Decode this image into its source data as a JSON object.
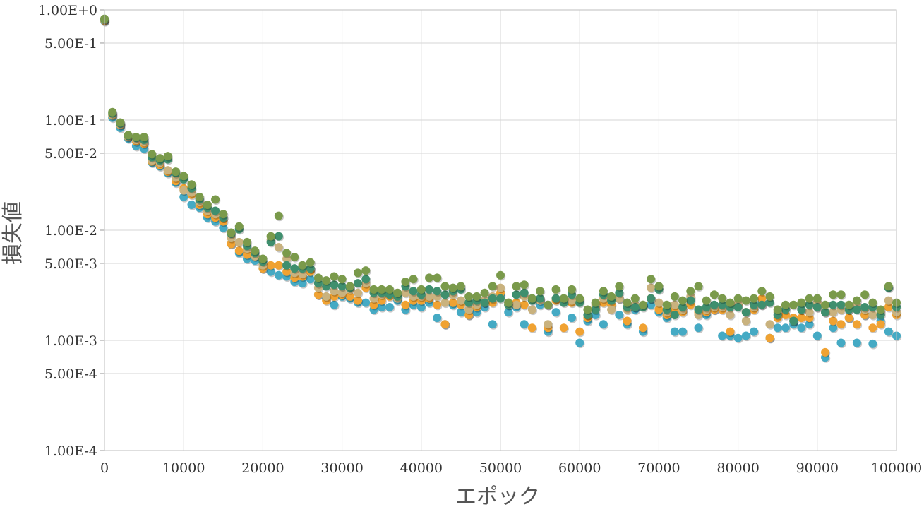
{
  "chart_data": {
    "type": "scatter",
    "title": "",
    "xlabel": "エポック",
    "ylabel": "損失値",
    "x_scale": "linear",
    "y_scale": "log",
    "xlim": [
      0,
      100000
    ],
    "ylim": [
      0.0001,
      1
    ],
    "grid": true,
    "legend": "none",
    "x_ticks": [
      0,
      10000,
      20000,
      30000,
      40000,
      50000,
      60000,
      70000,
      80000,
      90000,
      100000
    ],
    "x_tick_labels": [
      "0",
      "10000",
      "20000",
      "30000",
      "40000",
      "50000",
      "60000",
      "70000",
      "80000",
      "90000",
      "100000"
    ],
    "y_ticks": [
      1,
      0.5,
      0.1,
      0.05,
      0.01,
      0.005,
      0.001,
      0.0005,
      0.0001
    ],
    "y_tick_labels": [
      "1.00E+0",
      "5.00E-1",
      "1.00E-1",
      "5.00E-2",
      "1.00E-2",
      "5.00E-3",
      "1.00E-3",
      "5.00E-4",
      "1.00E-4"
    ],
    "series": [
      {
        "color": "#45aac4",
        "x": [
          0,
          1000,
          2000,
          3000,
          4000,
          5000,
          6000,
          7000,
          8000,
          9000,
          10000,
          11000,
          12000,
          13000,
          14000,
          15000,
          16000,
          17000,
          18000,
          19000,
          20000,
          21000,
          22000,
          23000,
          24000,
          25000,
          26000,
          27000,
          28000,
          29000,
          30000,
          31000,
          32000,
          33000,
          34000,
          35000,
          36000,
          37000,
          38000,
          39000,
          40000,
          41000,
          42000,
          43000,
          44000,
          45000,
          46000,
          47000,
          48000,
          49000,
          50000,
          51000,
          52000,
          53000,
          54000,
          55000,
          56000,
          57000,
          58000,
          59000,
          60000,
          61000,
          62000,
          63000,
          64000,
          65000,
          66000,
          67000,
          68000,
          69000,
          70000,
          71000,
          72000,
          73000,
          74000,
          75000,
          76000,
          77000,
          78000,
          79000,
          80000,
          81000,
          82000,
          83000,
          84000,
          85000,
          86000,
          87000,
          88000,
          89000,
          90000,
          91000,
          92000,
          93000,
          94000,
          95000,
          96000,
          97000,
          98000,
          99000,
          100000
        ],
        "y": [
          0.79,
          0.105,
          0.085,
          0.068,
          0.058,
          0.055,
          0.041,
          0.038,
          0.033,
          0.027,
          0.02,
          0.017,
          0.016,
          0.013,
          0.012,
          0.0105,
          0.0075,
          0.0062,
          0.0055,
          0.0053,
          0.0045,
          0.0042,
          0.0039,
          0.0038,
          0.0034,
          0.0033,
          0.0036,
          0.0026,
          0.0024,
          0.0021,
          0.0025,
          0.0024,
          0.0022,
          0.0022,
          0.0019,
          0.002,
          0.002,
          0.0023,
          0.0019,
          0.0021,
          0.002,
          0.0022,
          0.0016,
          0.0014,
          0.0021,
          0.0018,
          0.0017,
          0.0018,
          0.002,
          0.0014,
          0.0026,
          0.0018,
          0.002,
          0.0014,
          0.0024,
          0.0021,
          0.0012,
          0.0018,
          0.0024,
          0.0016,
          0.00095,
          0.0015,
          0.0017,
          0.0014,
          0.0021,
          0.0017,
          0.0014,
          0.0019,
          0.0012,
          0.0021,
          0.0018,
          0.0016,
          0.0012,
          0.0012,
          0.0024,
          0.0013,
          0.0017,
          0.0019,
          0.0011,
          0.0011,
          0.00105,
          0.0011,
          0.0012,
          0.0022,
          0.00105,
          0.0013,
          0.0013,
          0.0014,
          0.0013,
          0.0014,
          0.0011,
          0.0007,
          0.0013,
          0.00095,
          0.0016,
          0.00095,
          0.0017,
          0.00093,
          0.0015,
          0.0012,
          0.0011
        ]
      },
      {
        "color": "#f0a232",
        "x": [
          0,
          1000,
          2000,
          3000,
          4000,
          5000,
          6000,
          7000,
          8000,
          9000,
          10000,
          11000,
          12000,
          13000,
          14000,
          15000,
          16000,
          17000,
          18000,
          19000,
          20000,
          21000,
          22000,
          23000,
          24000,
          25000,
          26000,
          27000,
          28000,
          29000,
          30000,
          31000,
          32000,
          33000,
          34000,
          35000,
          36000,
          37000,
          38000,
          39000,
          40000,
          41000,
          42000,
          43000,
          44000,
          45000,
          46000,
          47000,
          48000,
          49000,
          50000,
          51000,
          52000,
          53000,
          54000,
          55000,
          56000,
          57000,
          58000,
          59000,
          60000,
          61000,
          62000,
          63000,
          64000,
          65000,
          66000,
          67000,
          68000,
          69000,
          70000,
          71000,
          72000,
          73000,
          74000,
          75000,
          76000,
          77000,
          78000,
          79000,
          80000,
          81000,
          82000,
          83000,
          84000,
          85000,
          86000,
          87000,
          88000,
          89000,
          90000,
          91000,
          92000,
          93000,
          94000,
          95000,
          96000,
          97000,
          98000,
          99000,
          100000
        ],
        "y": [
          0.8,
          0.11,
          0.09,
          0.07,
          0.064,
          0.061,
          0.042,
          0.039,
          0.034,
          0.028,
          0.024,
          0.021,
          0.017,
          0.014,
          0.013,
          0.012,
          0.0075,
          0.0065,
          0.006,
          0.0058,
          0.0045,
          0.0048,
          0.0048,
          0.0042,
          0.0037,
          0.0038,
          0.0042,
          0.0026,
          0.0023,
          0.0025,
          0.0026,
          0.0025,
          0.0023,
          0.003,
          0.0021,
          0.0023,
          0.0025,
          0.0025,
          0.0021,
          0.0023,
          0.0023,
          0.0024,
          0.0021,
          0.0014,
          0.0022,
          0.0021,
          0.0017,
          0.002,
          0.0022,
          0.0022,
          0.0027,
          0.0021,
          0.0022,
          0.0021,
          0.0013,
          0.0024,
          0.0013,
          0.0023,
          0.0013,
          0.0022,
          0.0012,
          0.0016,
          0.002,
          0.0022,
          0.0021,
          0.0024,
          0.0015,
          0.002,
          0.0013,
          0.0024,
          0.0019,
          0.0017,
          0.0019,
          0.0018,
          0.0021,
          0.0018,
          0.0018,
          0.0019,
          0.0019,
          0.0012,
          0.0021,
          0.0018,
          0.0019,
          0.0024,
          0.00105,
          0.0016,
          0.0017,
          0.0016,
          0.0016,
          0.0016,
          0.002,
          0.00078,
          0.0015,
          0.0014,
          0.0016,
          0.0014,
          0.0017,
          0.0013,
          0.0014,
          0.002,
          0.0017
        ]
      },
      {
        "color": "#c9b27e",
        "x": [
          0,
          1000,
          2000,
          3000,
          4000,
          5000,
          6000,
          7000,
          8000,
          9000,
          10000,
          11000,
          12000,
          13000,
          14000,
          15000,
          16000,
          17000,
          18000,
          19000,
          20000,
          21000,
          22000,
          23000,
          24000,
          25000,
          26000,
          27000,
          28000,
          29000,
          30000,
          31000,
          32000,
          33000,
          34000,
          35000,
          36000,
          37000,
          38000,
          39000,
          40000,
          41000,
          42000,
          43000,
          44000,
          45000,
          46000,
          47000,
          48000,
          49000,
          50000,
          51000,
          52000,
          53000,
          54000,
          55000,
          56000,
          57000,
          58000,
          59000,
          60000,
          61000,
          62000,
          63000,
          64000,
          65000,
          66000,
          67000,
          68000,
          69000,
          70000,
          71000,
          72000,
          73000,
          74000,
          75000,
          76000,
          77000,
          78000,
          79000,
          80000,
          81000,
          82000,
          83000,
          84000,
          85000,
          86000,
          87000,
          88000,
          89000,
          90000,
          91000,
          92000,
          93000,
          94000,
          95000,
          96000,
          97000,
          98000,
          99000,
          100000
        ],
        "y": [
          0.81,
          0.112,
          0.091,
          0.071,
          0.066,
          0.063,
          0.043,
          0.041,
          0.035,
          0.03,
          0.023,
          0.022,
          0.018,
          0.015,
          0.014,
          0.013,
          0.0085,
          0.0078,
          0.0068,
          0.0058,
          0.0048,
          0.0082,
          0.007,
          0.0055,
          0.0041,
          0.004,
          0.0045,
          0.003,
          0.0025,
          0.0028,
          0.0027,
          0.0029,
          0.0027,
          0.0033,
          0.0024,
          0.0026,
          0.0027,
          0.0024,
          0.0027,
          0.0025,
          0.0025,
          0.0025,
          0.0025,
          0.0022,
          0.0026,
          0.0023,
          0.0019,
          0.0021,
          0.0023,
          0.0025,
          0.003,
          0.0022,
          0.0021,
          0.0025,
          0.0019,
          0.0023,
          0.0014,
          0.0024,
          0.0024,
          0.0023,
          0.0023,
          0.0017,
          0.0021,
          0.0024,
          0.0019,
          0.0024,
          0.0019,
          0.0021,
          0.0021,
          0.003,
          0.0022,
          0.0018,
          0.0021,
          0.0019,
          0.0025,
          0.0017,
          0.0019,
          0.002,
          0.002,
          0.0017,
          0.0022,
          0.0015,
          0.002,
          0.0021,
          0.0014,
          0.0018,
          0.002,
          0.0015,
          0.0019,
          0.0018,
          0.0022,
          0.0018,
          0.0018,
          0.0019,
          0.0019,
          0.0021,
          0.0019,
          0.0017,
          0.0018,
          0.0023,
          0.0018
        ]
      },
      {
        "color": "#3f8f6e",
        "x": [
          0,
          1000,
          2000,
          3000,
          4000,
          5000,
          6000,
          7000,
          8000,
          9000,
          10000,
          11000,
          12000,
          13000,
          14000,
          15000,
          16000,
          17000,
          18000,
          19000,
          20000,
          21000,
          22000,
          23000,
          24000,
          25000,
          26000,
          27000,
          28000,
          29000,
          30000,
          31000,
          32000,
          33000,
          34000,
          35000,
          36000,
          37000,
          38000,
          39000,
          40000,
          41000,
          42000,
          43000,
          44000,
          45000,
          46000,
          47000,
          48000,
          49000,
          50000,
          51000,
          52000,
          53000,
          54000,
          55000,
          56000,
          57000,
          58000,
          59000,
          60000,
          61000,
          62000,
          63000,
          64000,
          65000,
          66000,
          67000,
          68000,
          69000,
          70000,
          71000,
          72000,
          73000,
          74000,
          75000,
          76000,
          77000,
          78000,
          79000,
          80000,
          81000,
          82000,
          83000,
          84000,
          85000,
          86000,
          87000,
          88000,
          89000,
          90000,
          91000,
          92000,
          93000,
          94000,
          95000,
          96000,
          97000,
          98000,
          99000,
          100000
        ],
        "y": [
          0.82,
          0.115,
          0.093,
          0.072,
          0.069,
          0.066,
          0.046,
          0.043,
          0.044,
          0.033,
          0.029,
          0.024,
          0.019,
          0.016,
          0.015,
          0.013,
          0.0093,
          0.0102,
          0.0072,
          0.0062,
          0.0052,
          0.0078,
          0.0088,
          0.0048,
          0.0045,
          0.0045,
          0.0045,
          0.0033,
          0.0031,
          0.0032,
          0.0031,
          0.003,
          0.0033,
          0.0036,
          0.0027,
          0.0027,
          0.0026,
          0.0025,
          0.0031,
          0.0028,
          0.0026,
          0.0029,
          0.0028,
          0.0026,
          0.0028,
          0.0029,
          0.0022,
          0.0023,
          0.0022,
          0.0024,
          0.0024,
          0.0021,
          0.0026,
          0.0027,
          0.0023,
          0.0024,
          0.0021,
          0.0024,
          0.0022,
          0.0026,
          0.0022,
          0.0017,
          0.0019,
          0.0026,
          0.0023,
          0.0027,
          0.002,
          0.002,
          0.002,
          0.0024,
          0.0029,
          0.0019,
          0.0017,
          0.002,
          0.0023,
          0.0019,
          0.002,
          0.0021,
          0.0021,
          0.002,
          0.002,
          0.0018,
          0.0021,
          0.0021,
          0.0022,
          0.0017,
          0.0019,
          0.0015,
          0.0019,
          0.0021,
          0.002,
          0.0018,
          0.0021,
          0.0021,
          0.0019,
          0.0019,
          0.002,
          0.002,
          0.0017,
          0.003,
          0.002
        ]
      },
      {
        "color": "#7a9a4b",
        "x": [
          0,
          1000,
          2000,
          3000,
          4000,
          5000,
          6000,
          7000,
          8000,
          9000,
          10000,
          11000,
          12000,
          13000,
          14000,
          15000,
          16000,
          17000,
          18000,
          19000,
          20000,
          21000,
          22000,
          23000,
          24000,
          25000,
          26000,
          27000,
          28000,
          29000,
          30000,
          31000,
          32000,
          33000,
          34000,
          35000,
          36000,
          37000,
          38000,
          39000,
          40000,
          41000,
          42000,
          43000,
          44000,
          45000,
          46000,
          47000,
          48000,
          49000,
          50000,
          51000,
          52000,
          53000,
          54000,
          55000,
          56000,
          57000,
          58000,
          59000,
          60000,
          61000,
          62000,
          63000,
          64000,
          65000,
          66000,
          67000,
          68000,
          69000,
          70000,
          71000,
          72000,
          73000,
          74000,
          75000,
          76000,
          77000,
          78000,
          79000,
          80000,
          81000,
          82000,
          83000,
          84000,
          85000,
          86000,
          87000,
          88000,
          89000,
          90000,
          91000,
          92000,
          93000,
          94000,
          95000,
          96000,
          97000,
          98000,
          99000,
          100000
        ],
        "y": [
          0.83,
          0.118,
          0.095,
          0.073,
          0.07,
          0.07,
          0.049,
          0.045,
          0.047,
          0.034,
          0.031,
          0.026,
          0.02,
          0.017,
          0.019,
          0.014,
          0.0095,
          0.0108,
          0.0078,
          0.0065,
          0.0055,
          0.0088,
          0.0135,
          0.0062,
          0.0057,
          0.0048,
          0.0051,
          0.0037,
          0.0035,
          0.0038,
          0.0036,
          0.0031,
          0.0041,
          0.0043,
          0.0029,
          0.0029,
          0.0029,
          0.0027,
          0.0034,
          0.0036,
          0.0029,
          0.0037,
          0.0037,
          0.0031,
          0.003,
          0.0031,
          0.0025,
          0.0025,
          0.0027,
          0.0031,
          0.0039,
          0.0022,
          0.0031,
          0.0032,
          0.0024,
          0.0028,
          0.0021,
          0.0029,
          0.0024,
          0.0029,
          0.0024,
          0.0019,
          0.0022,
          0.0028,
          0.0025,
          0.0031,
          0.0022,
          0.0024,
          0.0021,
          0.0036,
          0.0031,
          0.0021,
          0.0025,
          0.0023,
          0.0028,
          0.0031,
          0.0023,
          0.0026,
          0.0024,
          0.0022,
          0.0024,
          0.0023,
          0.0024,
          0.0028,
          0.0025,
          0.0019,
          0.0021,
          0.0021,
          0.0022,
          0.0024,
          0.0024,
          0.0021,
          0.0026,
          0.0026,
          0.0021,
          0.0023,
          0.0026,
          0.0022,
          0.0019,
          0.0031,
          0.0022
        ]
      }
    ]
  }
}
